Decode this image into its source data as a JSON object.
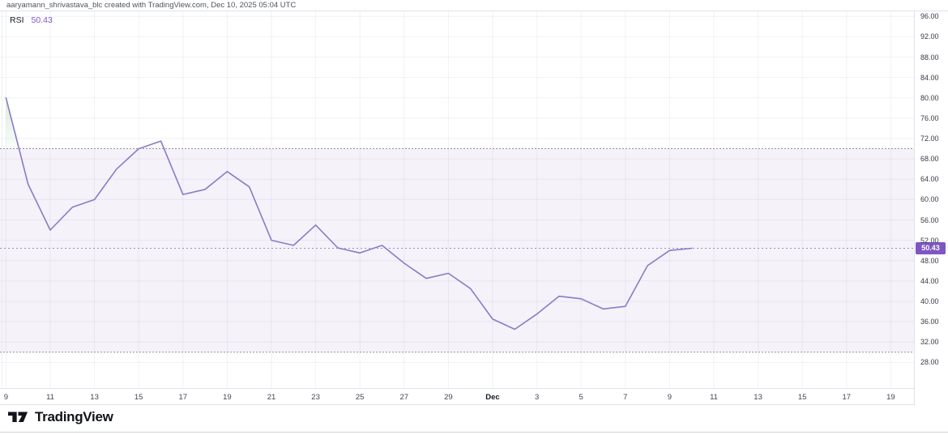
{
  "header": {
    "attribution": "aaryamann_shrivastava_blc created with TradingView.com, Dec 10, 2025 05:04 UTC"
  },
  "legend": {
    "indicator": "RSI",
    "value": "50.43"
  },
  "price_scale": {
    "labels": [
      "96.00",
      "92.00",
      "88.00",
      "84.00",
      "80.00",
      "76.00",
      "72.00",
      "68.00",
      "64.00",
      "60.00",
      "56.00",
      "52.00",
      "48.00",
      "44.00",
      "40.00",
      "36.00",
      "32.00",
      "28.00"
    ],
    "current_badge": "50.43"
  },
  "footer": {
    "brand": "TradingView"
  },
  "colors": {
    "accent_purple": "#7e57c2",
    "rsi_line": "#8a7cc5",
    "band_fill": "rgba(126,87,194,0.08)",
    "band_line": "#8d90a0",
    "price_line": "#9b90bf",
    "overbought_green": "#4caf50",
    "grid": "rgba(60,70,110,0.07)",
    "badge_text": "#ffffff"
  },
  "chart_data": {
    "type": "line",
    "title": "RSI",
    "legend_value": 50.43,
    "current_value": 50.43,
    "upper_band": 70,
    "lower_band": 30,
    "ylim": [
      23,
      97
    ],
    "y_ticks": [
      96,
      92,
      88,
      84,
      80,
      76,
      72,
      68,
      64,
      60,
      56,
      52,
      48,
      44,
      40,
      36,
      32,
      28
    ],
    "x": [
      "Nov 9",
      "Nov 10",
      "Nov 11",
      "Nov 12",
      "Nov 13",
      "Nov 14",
      "Nov 15",
      "Nov 16",
      "Nov 17",
      "Nov 18",
      "Nov 19",
      "Nov 20",
      "Nov 21",
      "Nov 22",
      "Nov 23",
      "Nov 24",
      "Nov 25",
      "Nov 26",
      "Nov 27",
      "Nov 28",
      "Nov 29",
      "Nov 30",
      "Dec 1",
      "Dec 2",
      "Dec 3",
      "Dec 4",
      "Dec 5",
      "Dec 6",
      "Dec 7",
      "Dec 8",
      "Dec 9",
      "Dec 10"
    ],
    "values": [
      80,
      63,
      54,
      58.5,
      60,
      66,
      70,
      71.5,
      61,
      62,
      65.5,
      62.5,
      52,
      51,
      55,
      50.5,
      49.5,
      51,
      47.5,
      44.5,
      45.5,
      42.5,
      36.5,
      34.5,
      37.5,
      41,
      40.5,
      38.5,
      39,
      47,
      50,
      50.43
    ],
    "x_ticks": [
      {
        "label": "9",
        "d": 0
      },
      {
        "label": "11",
        "d": 2
      },
      {
        "label": "13",
        "d": 4
      },
      {
        "label": "15",
        "d": 6
      },
      {
        "label": "17",
        "d": 8
      },
      {
        "label": "19",
        "d": 10
      },
      {
        "label": "21",
        "d": 12
      },
      {
        "label": "23",
        "d": 14
      },
      {
        "label": "25",
        "d": 16
      },
      {
        "label": "27",
        "d": 18
      },
      {
        "label": "29",
        "d": 20
      },
      {
        "label": "Dec",
        "d": 22,
        "strong": true
      },
      {
        "label": "3",
        "d": 24
      },
      {
        "label": "5",
        "d": 26
      },
      {
        "label": "7",
        "d": 28
      },
      {
        "label": "9",
        "d": 30
      },
      {
        "label": "11",
        "d": 32
      },
      {
        "label": "13",
        "d": 34
      },
      {
        "label": "15",
        "d": 36
      },
      {
        "label": "17",
        "d": 38
      },
      {
        "label": "19",
        "d": 40
      }
    ],
    "legend_position": "top-left",
    "grid": true
  }
}
